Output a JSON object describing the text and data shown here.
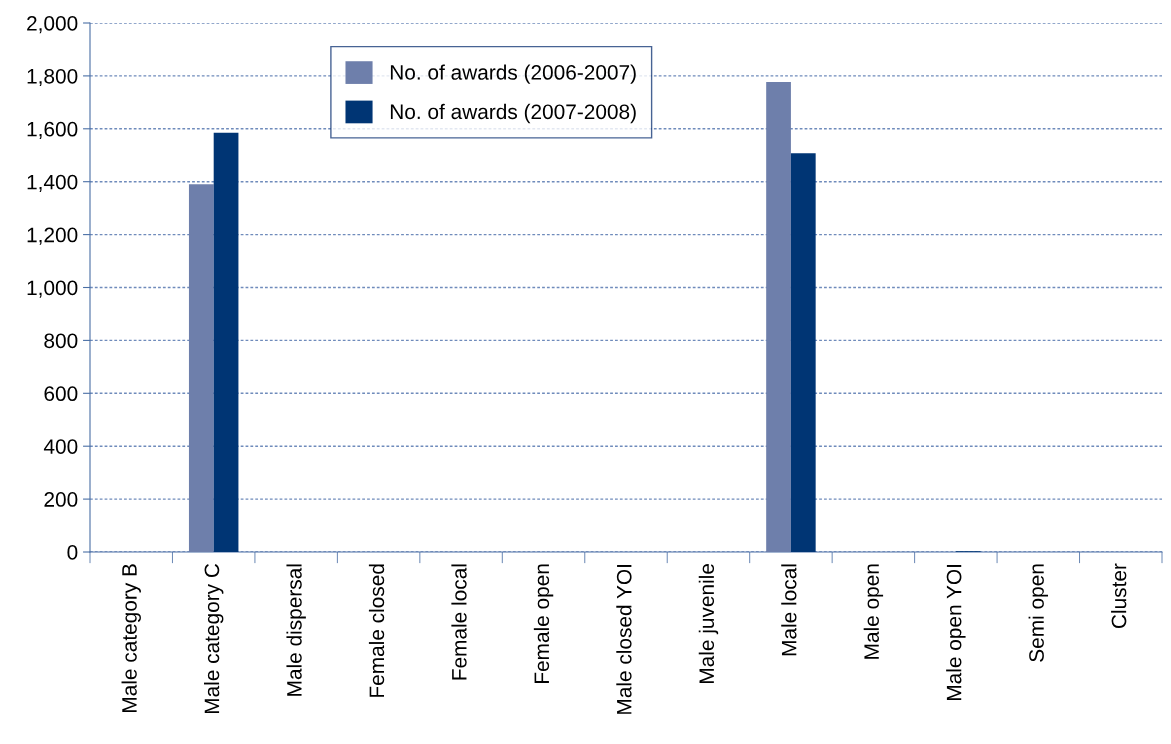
{
  "chart_data": {
    "type": "bar",
    "categories": [
      "Male category B",
      "Male category C",
      "Male dispersal",
      "Female closed",
      "Female local",
      "Female open",
      "Male closed YOI",
      "Male juvenile",
      "Male local",
      "Male open",
      "Male open YOI",
      "Semi open",
      "Cluster"
    ],
    "series": [
      {
        "name": "No. of awards (2006-2007)",
        "color": "#6e7fab",
        "values": [
          0,
          1390,
          0,
          0,
          0,
          0,
          0,
          0,
          1777,
          0,
          0,
          0,
          0
        ]
      },
      {
        "name": "No. of awards (2007-2008)",
        "color": "#003574",
        "values": [
          0,
          1585,
          0,
          0,
          0,
          0,
          0,
          0,
          1508,
          0,
          3,
          0,
          0
        ]
      }
    ],
    "ylim": [
      0,
      2000
    ],
    "yticks": [
      {
        "value": 0,
        "label": "0"
      },
      {
        "value": 200,
        "label": "200"
      },
      {
        "value": 400,
        "label": "400"
      },
      {
        "value": 600,
        "label": "600"
      },
      {
        "value": 800,
        "label": "800"
      },
      {
        "value": 1000,
        "label": "1,000"
      },
      {
        "value": 1200,
        "label": "1,200"
      },
      {
        "value": 1400,
        "label": "1,400"
      },
      {
        "value": 1600,
        "label": "1,600"
      },
      {
        "value": 1800,
        "label": "1,800"
      },
      {
        "value": 2000,
        "label": "2,000"
      }
    ],
    "grid": "y",
    "legend": "top left"
  }
}
